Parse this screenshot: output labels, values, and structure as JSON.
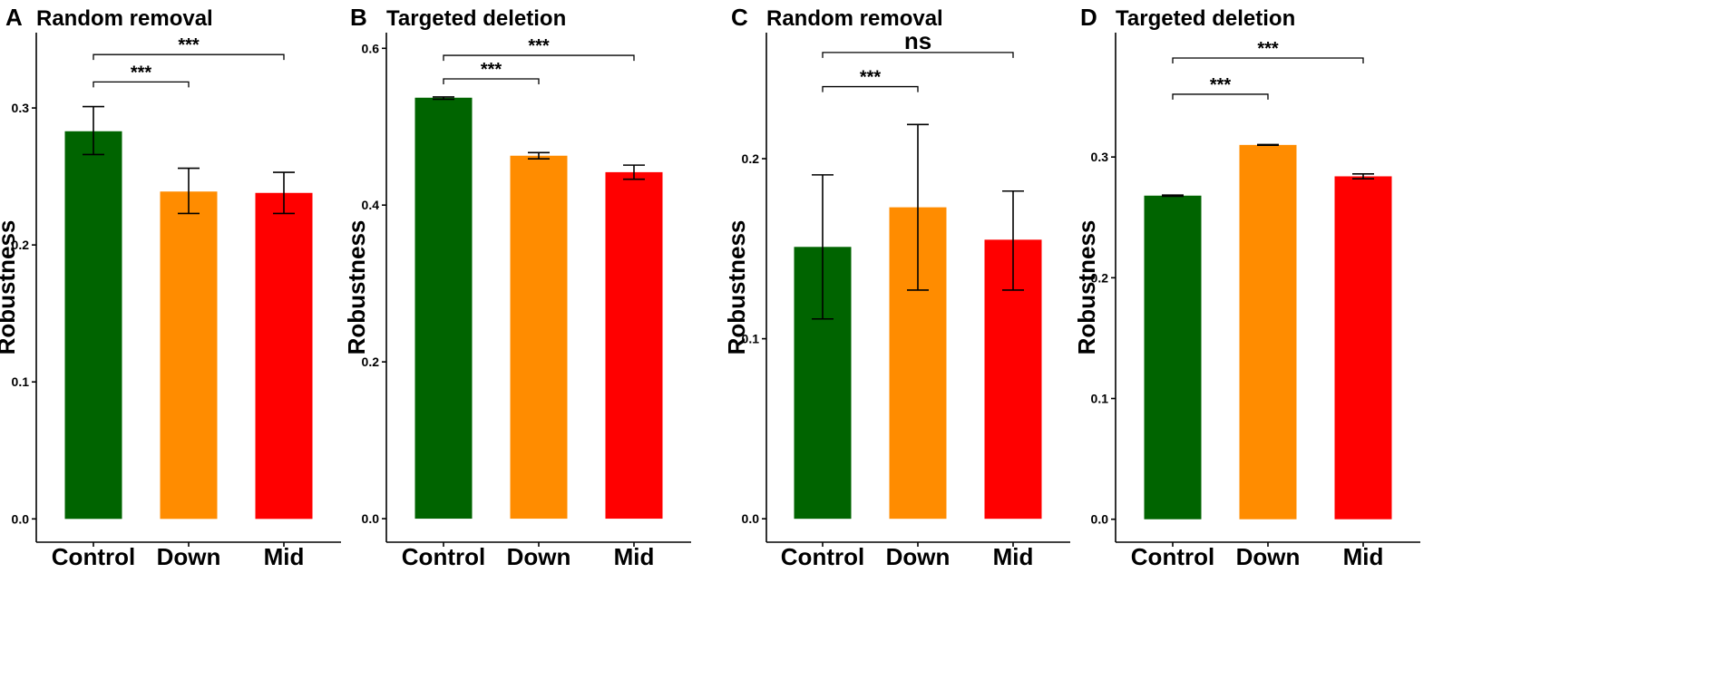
{
  "chart_data": [
    {
      "type": "bar",
      "panel": "A",
      "title": "Random removal",
      "xlabel": "",
      "ylabel": "Robustness",
      "categories": [
        "Control",
        "Down",
        "Mid"
      ],
      "values": [
        0.283,
        0.239,
        0.238
      ],
      "errors": [
        [
          0.266,
          0.301
        ],
        [
          0.223,
          0.256
        ],
        [
          0.223,
          0.253
        ]
      ],
      "colors": [
        "#006400",
        "#FF8C00",
        "#FF0000"
      ],
      "ylim": [
        -0.017,
        0.355
      ],
      "yticks": [
        "0.0",
        "0.1",
        "0.2",
        "0.3"
      ],
      "comparisons": [
        {
          "from": 0,
          "to": 1,
          "y": 0.319,
          "label": "***"
        },
        {
          "from": 0,
          "to": 2,
          "y": 0.339,
          "label": "***"
        }
      ]
    },
    {
      "type": "bar",
      "panel": "B",
      "title": "Targeted deletion",
      "xlabel": "",
      "ylabel": "Robustness",
      "categories": [
        "Control",
        "Down",
        "Mid"
      ],
      "values": [
        0.537,
        0.463,
        0.442
      ],
      "errors": [
        [
          0.535,
          0.538
        ],
        [
          0.459,
          0.467
        ],
        [
          0.433,
          0.451
        ]
      ],
      "colors": [
        "#006400",
        "#FF8C00",
        "#FF0000"
      ],
      "ylim": [
        -0.03,
        0.62
      ],
      "yticks": [
        "0.0",
        "0.2",
        "0.4",
        "0.6"
      ],
      "comparisons": [
        {
          "from": 0,
          "to": 1,
          "y": 0.561,
          "label": "***"
        },
        {
          "from": 0,
          "to": 2,
          "y": 0.591,
          "label": "***"
        }
      ]
    },
    {
      "type": "bar",
      "panel": "C",
      "title": "Random removal",
      "xlabel": "",
      "ylabel": "Robustness",
      "categories": [
        "Control",
        "Down",
        "Mid"
      ],
      "values": [
        0.151,
        0.173,
        0.155
      ],
      "errors": [
        [
          0.111,
          0.191
        ],
        [
          0.127,
          0.219
        ],
        [
          0.127,
          0.182
        ]
      ],
      "colors": [
        "#006400",
        "#FF8C00",
        "#FF0000"
      ],
      "ylim": [
        -0.013,
        0.27
      ],
      "yticks": [
        "0.0",
        "0.1",
        "0.2"
      ],
      "comparisons": [
        {
          "from": 0,
          "to": 1,
          "y": 0.24,
          "label": "***"
        },
        {
          "from": 0,
          "to": 2,
          "y": 0.259,
          "label": "ns"
        }
      ]
    },
    {
      "type": "bar",
      "panel": "D",
      "title": "Targeted deletion",
      "xlabel": "",
      "ylabel": "Robustness",
      "categories": [
        "Control",
        "Down",
        "Mid"
      ],
      "values": [
        0.268,
        0.31,
        0.284
      ],
      "errors": [
        [
          0.2675,
          0.2685
        ],
        [
          0.3097,
          0.3103
        ],
        [
          0.282,
          0.286
        ]
      ],
      "colors": [
        "#006400",
        "#FF8C00",
        "#FF0000"
      ],
      "ylim": [
        -0.019,
        0.403
      ],
      "yticks": [
        "0.0",
        "0.1",
        "0.2",
        "0.3"
      ],
      "comparisons": [
        {
          "from": 0,
          "to": 1,
          "y": 0.352,
          "label": "***"
        },
        {
          "from": 0,
          "to": 2,
          "y": 0.382,
          "label": "***"
        }
      ]
    }
  ]
}
